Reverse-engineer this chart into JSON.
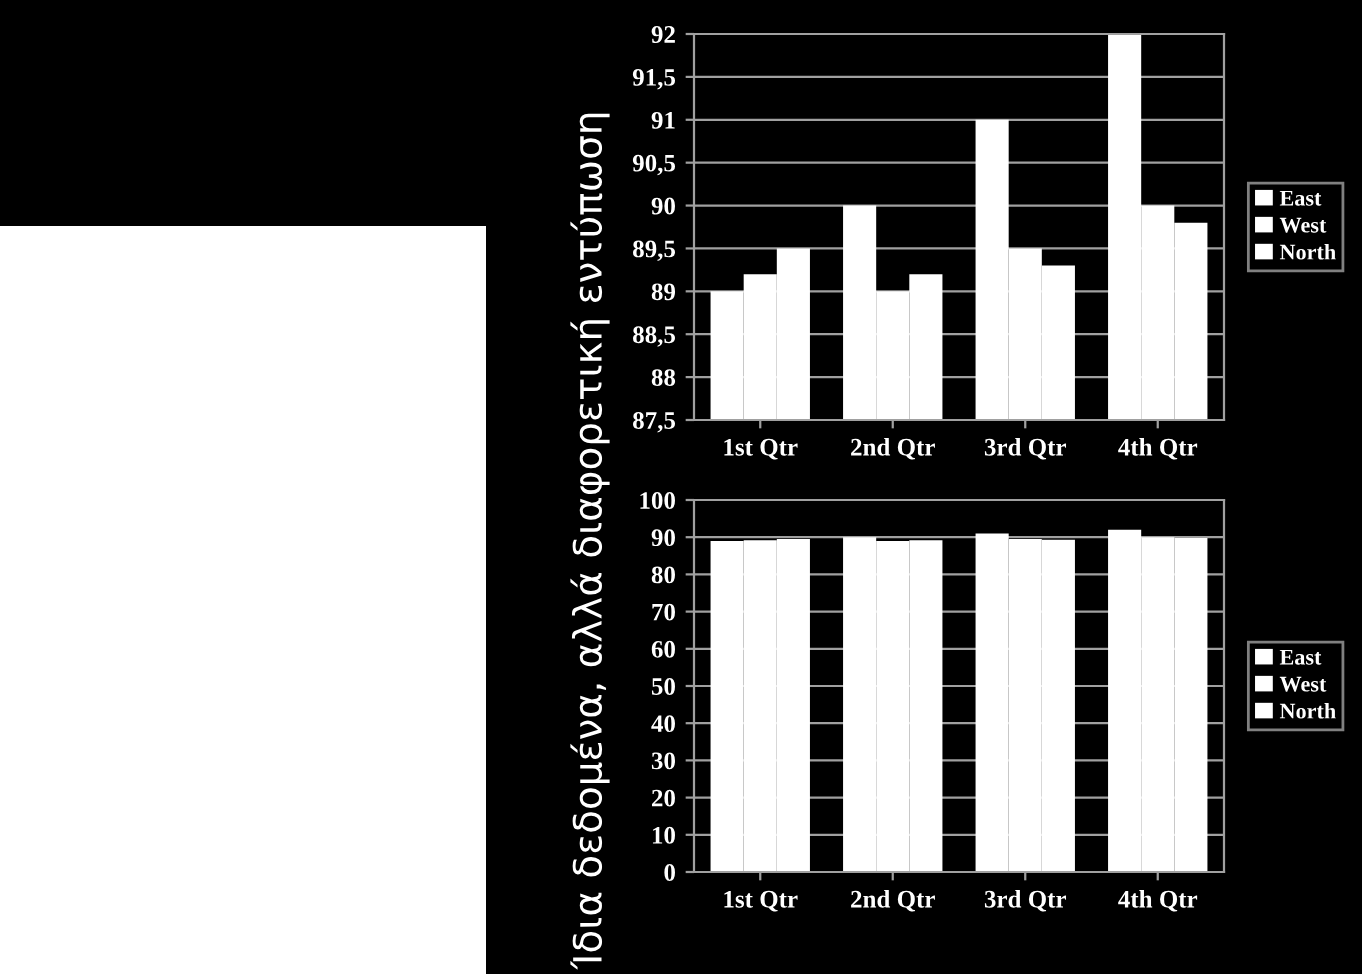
{
  "chart_data": [
    {
      "type": "bar",
      "ylabel": "Ίδια δεδομένα, αλλά διαφορετική εντύπωση",
      "categories": [
        "1st Qtr",
        "2nd Qtr",
        "3rd Qtr",
        "4th Qtr"
      ],
      "series": [
        {
          "name": "East",
          "color": "#ffffff",
          "values": [
            89,
            90,
            91,
            92
          ]
        },
        {
          "name": "West",
          "color": "#ffffff",
          "values": [
            89.2,
            89,
            89.5,
            90
          ]
        },
        {
          "name": "North",
          "color": "#ffffff",
          "values": [
            89.5,
            89.2,
            89.3,
            89.8
          ]
        }
      ],
      "ylim": [
        87.5,
        92
      ],
      "yticks": [
        {
          "value": 87.5,
          "label": "87,5"
        },
        88,
        {
          "value": 88.5,
          "label": "88,5"
        },
        89,
        {
          "value": 89.5,
          "label": "89,5"
        },
        90,
        {
          "value": 90.5,
          "label": "90,5"
        },
        91,
        {
          "value": 91.5,
          "label": "91,5"
        },
        92
      ],
      "grid": "y",
      "legend": "right"
    },
    {
      "type": "bar",
      "categories": [
        "1st Qtr",
        "2nd Qtr",
        "3rd Qtr",
        "4th Qtr"
      ],
      "series": [
        {
          "name": "East",
          "color": "#ffffff",
          "values": [
            89,
            90,
            91,
            92
          ]
        },
        {
          "name": "West",
          "color": "#ffffff",
          "values": [
            89.2,
            89,
            89.5,
            90
          ]
        },
        {
          "name": "North",
          "color": "#ffffff",
          "values": [
            89.5,
            89.2,
            89.3,
            89.8
          ]
        }
      ],
      "ylim": [
        0,
        100
      ],
      "yticks": [
        0,
        10,
        20,
        30,
        40,
        50,
        60,
        70,
        80,
        90,
        100
      ],
      "grid": "y",
      "legend": "right"
    }
  ]
}
